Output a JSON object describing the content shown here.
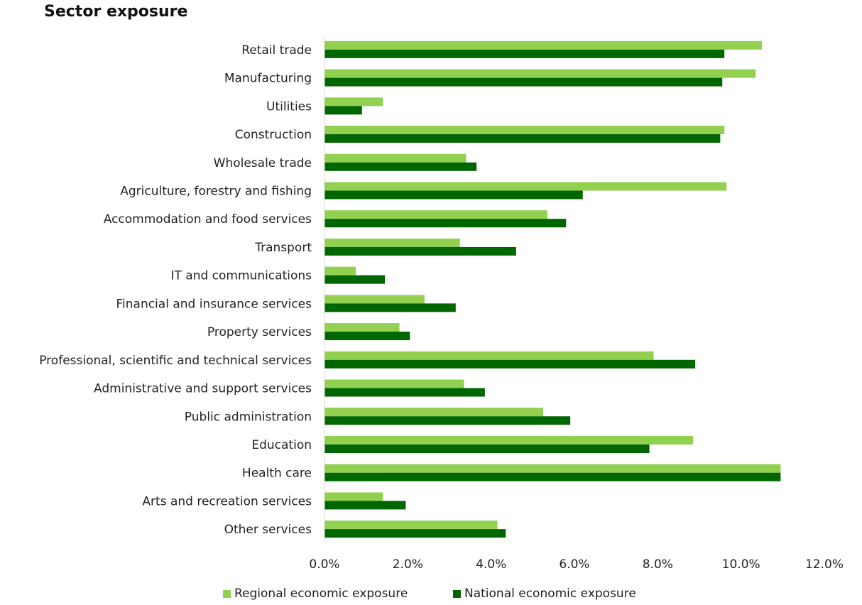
{
  "chart_data": {
    "type": "bar",
    "orientation": "horizontal",
    "title": "Sector exposure",
    "categories": [
      "Retail trade",
      "Manufacturing",
      "Utilities",
      "Construction",
      "Wholesale trade",
      "Agriculture, forestry and fishing",
      "Accommodation and food services",
      "Transport",
      "IT and communications",
      "Financial and insurance services",
      "Property services",
      "Professional, scientific and technical services",
      "Administrative and support services",
      "Public administration",
      "Education",
      "Health care",
      "Arts and recreation services",
      "Other services"
    ],
    "series": [
      {
        "name": "Regional economic exposure",
        "color": "#92d050",
        "values": [
          10.5,
          10.35,
          1.4,
          9.6,
          3.4,
          9.65,
          5.35,
          3.25,
          0.75,
          2.4,
          1.8,
          7.9,
          3.35,
          5.25,
          8.85,
          10.95,
          1.4,
          4.15
        ]
      },
      {
        "name": "National economic exposure",
        "color": "#006600",
        "values": [
          9.6,
          9.55,
          0.9,
          9.5,
          3.65,
          6.2,
          5.8,
          4.6,
          1.45,
          3.15,
          2.05,
          8.9,
          3.85,
          5.9,
          7.8,
          10.95,
          1.95,
          4.35
        ]
      }
    ],
    "xlim": [
      0,
      12
    ],
    "xticks": [
      "0.0%",
      "2.0%",
      "4.0%",
      "6.0%",
      "8.0%",
      "10.0%",
      "12.0%"
    ],
    "grid": false,
    "legend_position": "bottom"
  }
}
